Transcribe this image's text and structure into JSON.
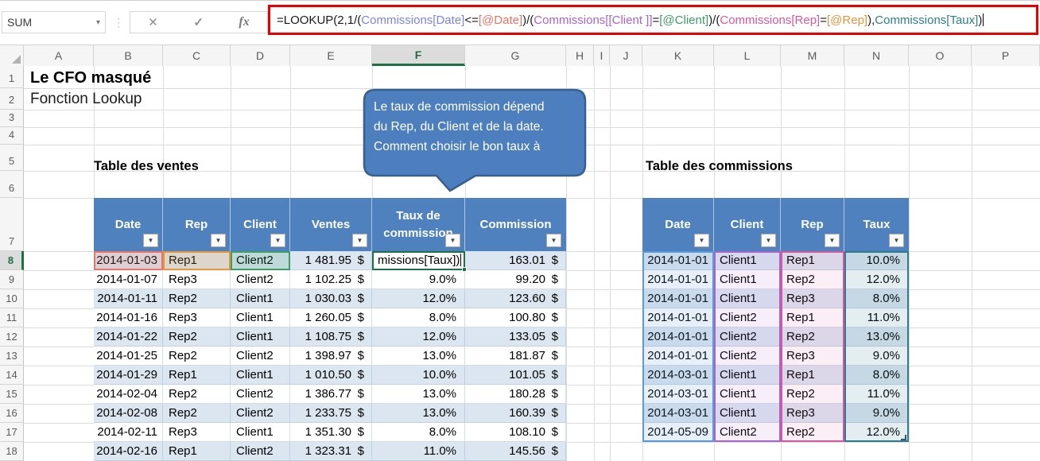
{
  "formula_bar": {
    "name_box": "SUM",
    "icons": {
      "dropdown": "▾",
      "cancel": "✕",
      "enter": "✓",
      "fx": "fx",
      "separator": "⋮",
      "filter_arrow": "▼"
    },
    "formula_segments": [
      {
        "t": "=LOOKUP(2,1/(",
        "c": "black"
      },
      {
        "t": "Commissions[Date]",
        "c": "blue"
      },
      {
        "t": "<=",
        "c": "black"
      },
      {
        "t": "[@Date]",
        "c": "red"
      },
      {
        "t": ")/(",
        "c": "black"
      },
      {
        "t": "Commissions[[Client ]]",
        "c": "purple"
      },
      {
        "t": "=",
        "c": "black"
      },
      {
        "t": "[@Client]",
        "c": "green"
      },
      {
        "t": ")/(",
        "c": "black"
      },
      {
        "t": "Commissions[Rep]",
        "c": "pink"
      },
      {
        "t": "=",
        "c": "black"
      },
      {
        "t": "[@Rep]",
        "c": "orange"
      },
      {
        "t": "),",
        "c": "black"
      },
      {
        "t": "Commissions[Taux]",
        "c": "teal"
      },
      {
        "t": ")",
        "c": "black"
      }
    ],
    "token_colors": {
      "black": "#1a1a1a",
      "blue": "#7b86d8",
      "red": "#e8756a",
      "purple": "#a964ca",
      "green": "#3f9c68",
      "pink": "#d4589e",
      "orange": "#e3963c",
      "teal": "#2e7d8a"
    }
  },
  "grid": {
    "column_letters": [
      "A",
      "B",
      "C",
      "D",
      "E",
      "F",
      "G",
      "H",
      "I",
      "J",
      "K",
      "L",
      "M",
      "N",
      "O",
      "P"
    ],
    "row_numbers": [
      "1",
      "2",
      "3",
      "4",
      "5",
      "6",
      "7",
      "8",
      "9",
      "10",
      "11",
      "12",
      "13",
      "14",
      "15",
      "16",
      "17",
      "18"
    ],
    "selected_column": "F",
    "selected_row": "8"
  },
  "titles": {
    "title": "Le CFO masqué",
    "subtitle": "Fonction Lookup"
  },
  "callout": {
    "lines": [
      "Le taux de commission dépend",
      "du Rep, du Client et de la date.",
      "Comment choisir le bon taux à"
    ]
  },
  "sales_table": {
    "title": "Table des ventes",
    "columns": [
      "Date",
      "Rep",
      "Client",
      "Ventes",
      "Taux de commission",
      "Commission"
    ],
    "editing_cell_text": "missions[Taux])",
    "rows": [
      [
        "2014-01-03",
        "Rep1",
        "Client2",
        "1 481.95 $",
        "",
        "163.01 $"
      ],
      [
        "2014-01-07",
        "Rep3",
        "Client2",
        "1 102.25 $",
        "9.0%",
        "99.20 $"
      ],
      [
        "2014-01-11",
        "Rep2",
        "Client1",
        "1 030.03 $",
        "12.0%",
        "123.60 $"
      ],
      [
        "2014-01-16",
        "Rep3",
        "Client1",
        "1 260.05 $",
        "8.0%",
        "100.80 $"
      ],
      [
        "2014-01-22",
        "Rep2",
        "Client1",
        "1 108.75 $",
        "12.0%",
        "133.05 $"
      ],
      [
        "2014-01-25",
        "Rep2",
        "Client2",
        "1 398.97 $",
        "13.0%",
        "181.87 $"
      ],
      [
        "2014-01-29",
        "Rep1",
        "Client1",
        "1 010.50 $",
        "10.0%",
        "101.05 $"
      ],
      [
        "2014-02-04",
        "Rep2",
        "Client2",
        "1 386.77 $",
        "13.0%",
        "180.28 $"
      ],
      [
        "2014-02-08",
        "Rep2",
        "Client2",
        "1 233.75 $",
        "13.0%",
        "160.39 $"
      ],
      [
        "2014-02-11",
        "Rep3",
        "Client1",
        "1 351.30 $",
        "8.0%",
        "108.10 $"
      ],
      [
        "2014-02-16",
        "Rep1",
        "Client2",
        "1 323.31 $",
        "11.0%",
        "145.56 $"
      ]
    ]
  },
  "commissions_table": {
    "title": "Table des commissions",
    "columns": [
      "Date",
      "Client",
      "Rep",
      "Taux"
    ],
    "rows": [
      [
        "2014-01-01",
        "Client1",
        "Rep1",
        "10.0%"
      ],
      [
        "2014-01-01",
        "Client1",
        "Rep2",
        "12.0%"
      ],
      [
        "2014-01-01",
        "Client1",
        "Rep3",
        "8.0%"
      ],
      [
        "2014-01-01",
        "Client2",
        "Rep1",
        "11.0%"
      ],
      [
        "2014-01-01",
        "Client2",
        "Rep2",
        "13.0%"
      ],
      [
        "2014-01-01",
        "Client2",
        "Rep3",
        "9.0%"
      ],
      [
        "2014-03-01",
        "Client1",
        "Rep1",
        "8.0%"
      ],
      [
        "2014-03-01",
        "Client1",
        "Rep2",
        "11.0%"
      ],
      [
        "2014-03-01",
        "Client1",
        "Rep3",
        "9.0%"
      ],
      [
        "2014-05-09",
        "Client2",
        "Rep2",
        "12.0%"
      ]
    ]
  },
  "colors": {
    "header_blue": "#4e81bd",
    "band_blue": "#dce6f1",
    "callout_fill": "#4d7ebd",
    "callout_border": "#36608f",
    "excel_green": "#1e7145",
    "annotation_red": "#e60000",
    "highlight_date": "#5b9bd5",
    "highlight_client": "#a964ca",
    "highlight_rep": "#d4589e",
    "highlight_taux": "#2e7d8a",
    "highlight_at_date": "#e8756a",
    "highlight_at_client": "#3f9c68",
    "highlight_at_rep": "#e3963c"
  }
}
